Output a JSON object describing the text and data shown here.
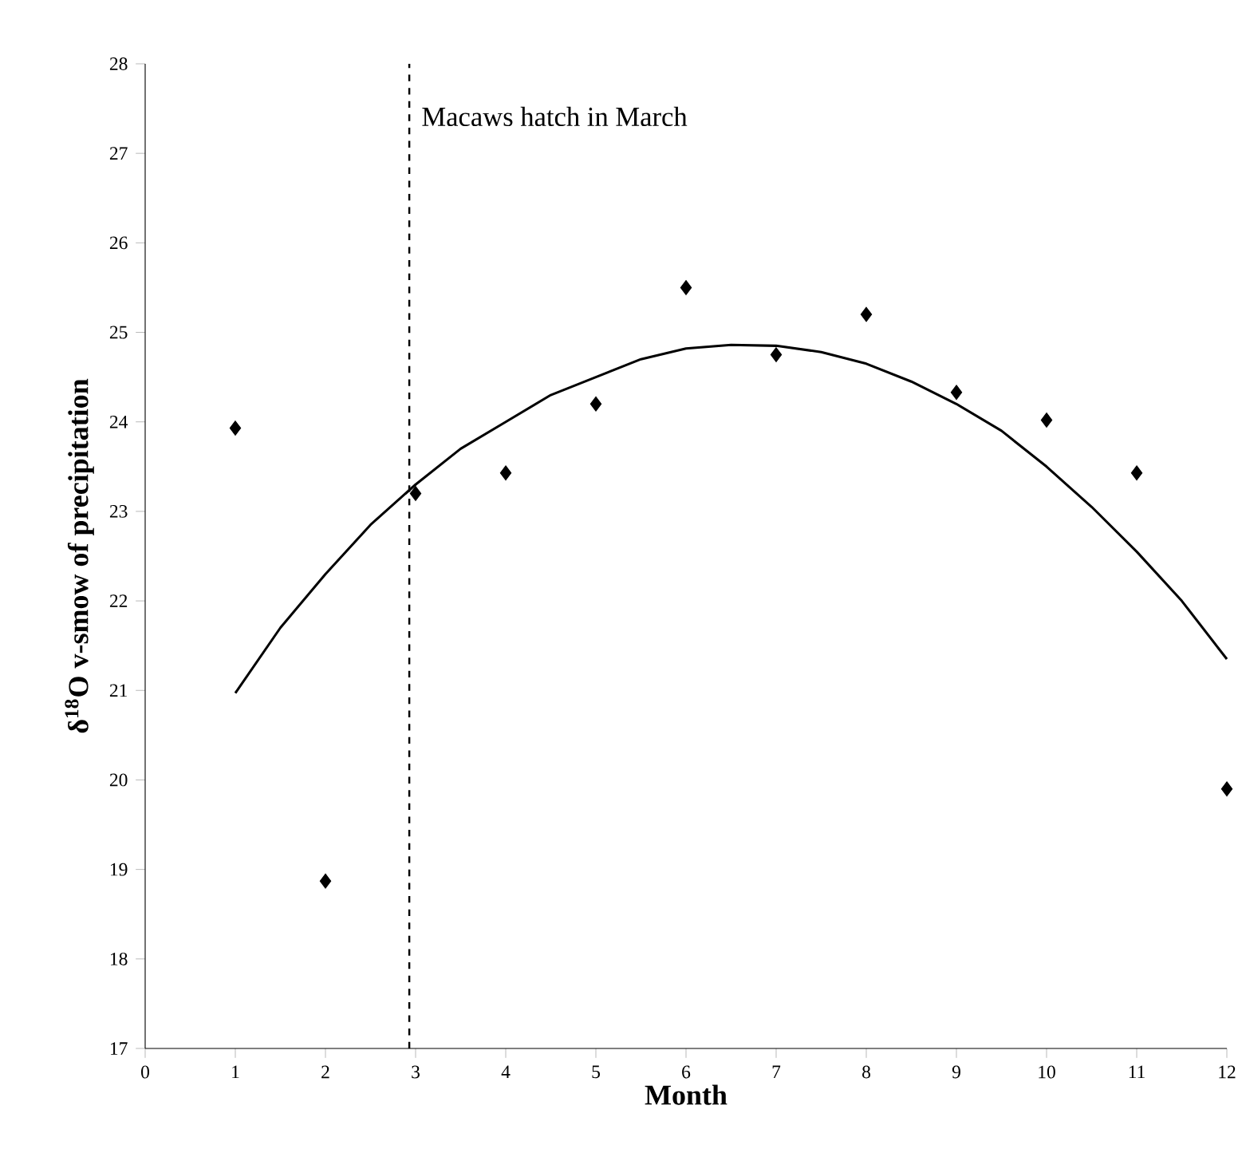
{
  "chart_data": {
    "type": "scatter",
    "xlabel": "Month",
    "ylabel": "δ$^{18}$O v-smow of precipitation",
    "xlim": [
      0,
      12
    ],
    "ylim": [
      17,
      28
    ],
    "xticks": [
      0,
      1,
      2,
      3,
      4,
      5,
      6,
      7,
      8,
      9,
      10,
      11,
      12
    ],
    "yticks": [
      17,
      18,
      19,
      20,
      21,
      22,
      23,
      24,
      25,
      26,
      27,
      28
    ],
    "marker": "diamond",
    "series": [
      {
        "color": "#000000",
        "x": [
          1,
          2,
          3,
          4,
          5,
          6,
          7,
          8,
          9,
          10,
          11,
          12
        ],
        "values": [
          23.93,
          18.87,
          23.2,
          23.43,
          24.2,
          25.5,
          24.75,
          25.2,
          24.33,
          24.02,
          23.43,
          19.9
        ]
      },
      {
        "type": "line",
        "color": "#000000",
        "marker": "none",
        "x": [
          1,
          1.5,
          2,
          2.5,
          3,
          3.5,
          4,
          4.5,
          5,
          5.5,
          6,
          6.5,
          7,
          7.5,
          8,
          8.5,
          9,
          9.5,
          10,
          10.5,
          11,
          11.5,
          12
        ],
        "values": [
          20.97,
          21.7,
          22.3,
          22.85,
          23.3,
          23.7,
          24.0,
          24.3,
          24.5,
          24.7,
          24.82,
          24.86,
          24.85,
          24.78,
          24.65,
          24.45,
          24.2,
          23.9,
          23.5,
          23.05,
          22.55,
          22.0,
          21.35
        ]
      }
    ],
    "ref_lines": [
      {
        "axis": "x",
        "value": 2.93,
        "label": "Macaws hatch in March",
        "line_style": "dashed",
        "color": "#000000"
      }
    ]
  }
}
